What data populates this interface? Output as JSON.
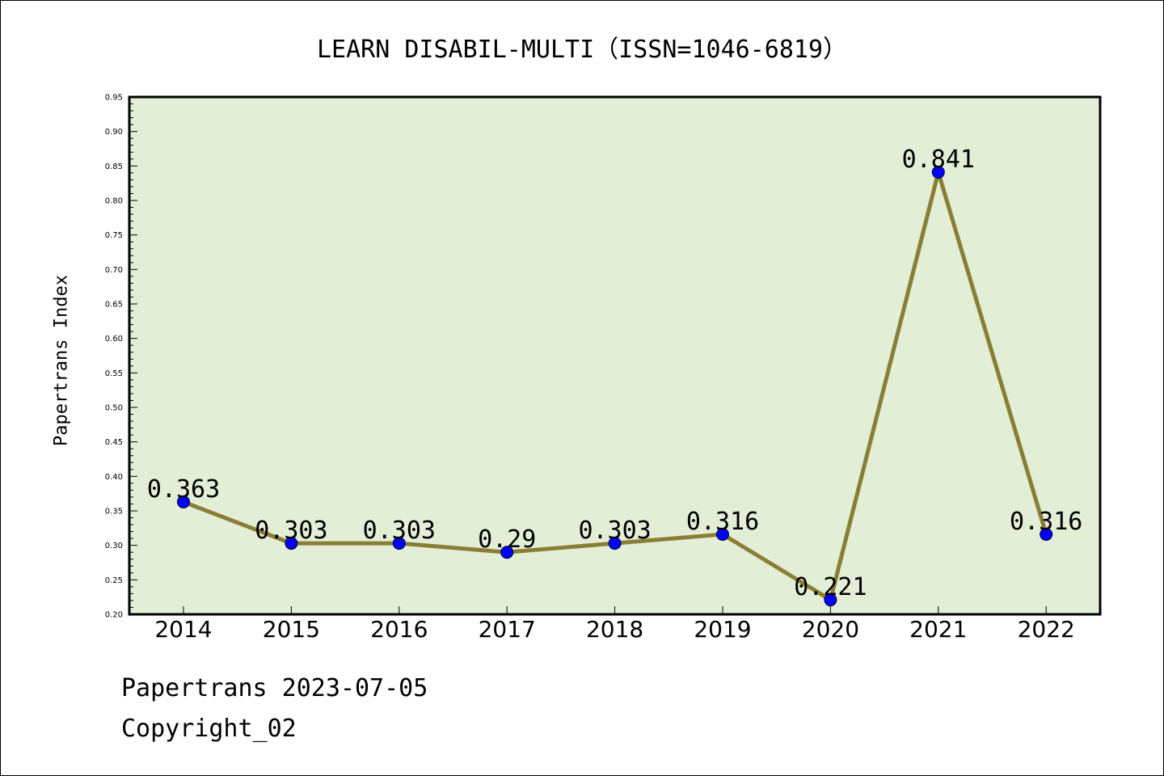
{
  "chart_data": {
    "type": "line",
    "title": "LEARN DISABIL-MULTI（ISSN=1046-6819）",
    "xlabel": "",
    "ylabel": "Papertrans Index",
    "categories": [
      "2014",
      "2015",
      "2016",
      "2017",
      "2018",
      "2019",
      "2020",
      "2021",
      "2022"
    ],
    "series": [
      {
        "values": [
          0.363,
          0.303,
          0.303,
          0.29,
          0.303,
          0.316,
          0.221,
          0.841,
          0.316
        ],
        "labels": [
          "0.363",
          "0.303",
          "0.303",
          "0.29",
          "0.303",
          "0.316",
          "0.221",
          "0.841",
          "0.316"
        ]
      }
    ],
    "ylim": [
      0.2,
      0.95
    ],
    "yticks": [
      "0.20",
      "0.25",
      "0.30",
      "0.35",
      "0.40",
      "0.45",
      "0.50",
      "0.55",
      "0.60",
      "0.65",
      "0.70",
      "0.75",
      "0.80",
      "0.85",
      "0.90",
      "0.95"
    ],
    "grid": false,
    "legend": "none",
    "colors": {
      "plot_background": "#e2efd6",
      "line": "#8c7d35",
      "marker": "#0000ff"
    }
  },
  "footer": {
    "line1": "Papertrans 2023-07-05",
    "line2": "Copyright_02"
  }
}
